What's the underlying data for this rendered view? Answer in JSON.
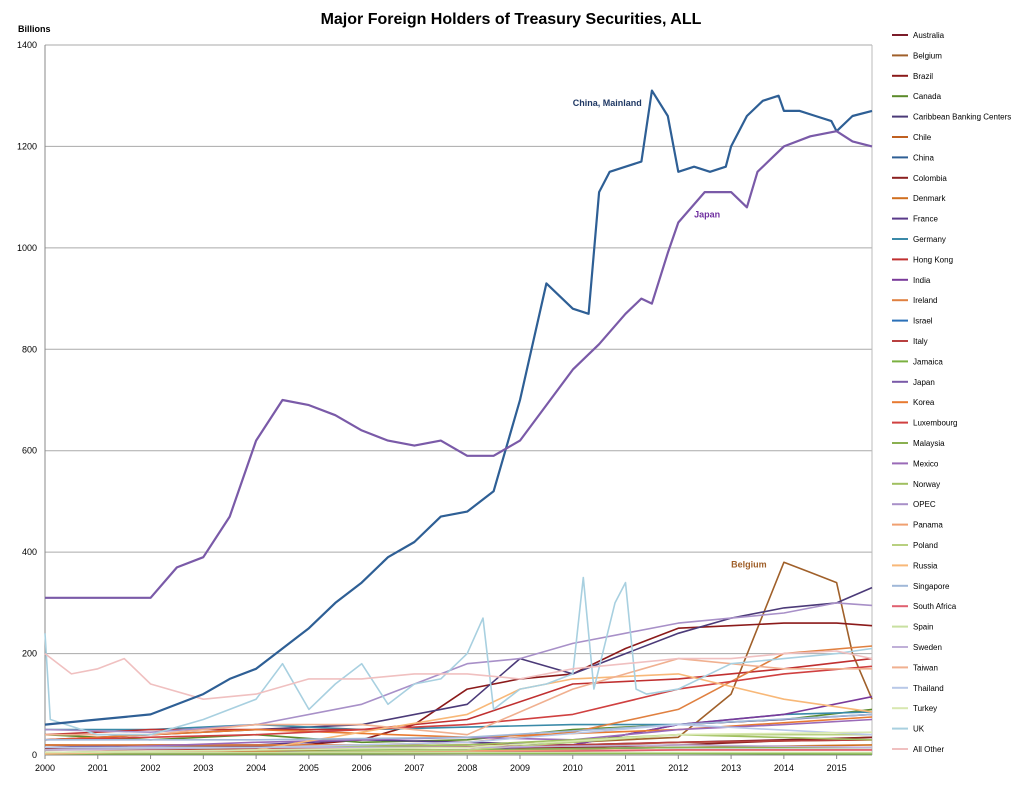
{
  "chart_data": {
    "type": "line",
    "title": "Major Foreign Holders of Treasury Securities, ALL",
    "ylabel": "Billions",
    "xlabel": "",
    "ylim": [
      0,
      1400
    ],
    "xlim": [
      2000,
      2015.67
    ],
    "yticks": [
      0,
      200,
      400,
      600,
      800,
      1000,
      1200,
      1400
    ],
    "xticks": [
      "2000",
      "2001",
      "2002",
      "2003",
      "2004",
      "2005",
      "2006",
      "2007",
      "2008",
      "2009",
      "2010",
      "2011",
      "2012",
      "2013",
      "2014",
      "2015"
    ],
    "grid": "horizontal",
    "legend_position": "right",
    "annotations": [
      {
        "text": "China, Mainland",
        "x": 2010.0,
        "y": 1280,
        "color": "#1f3864"
      },
      {
        "text": "Japan",
        "x": 2012.3,
        "y": 1060,
        "color": "#7030a0"
      },
      {
        "text": "Belgium",
        "x": 2013.0,
        "y": 370,
        "color": "#a0602a"
      }
    ],
    "series": [
      {
        "name": "Australia",
        "color": "#7b1c2a",
        "x": [
          2000,
          2002,
          2004,
          2006,
          2008,
          2010,
          2012,
          2014,
          2015.67
        ],
        "values": [
          20,
          18,
          18,
          15,
          16,
          20,
          25,
          30,
          35
        ]
      },
      {
        "name": "Belgium",
        "color": "#a0602a",
        "x": [
          2000,
          2002,
          2004,
          2006,
          2008,
          2010,
          2011,
          2012,
          2013,
          2013.5,
          2014,
          2014.5,
          2015,
          2015.3,
          2015.67
        ],
        "values": [
          20,
          18,
          20,
          18,
          20,
          25,
          30,
          35,
          120,
          250,
          380,
          360,
          340,
          200,
          110
        ]
      },
      {
        "name": "Brazil",
        "color": "#8b1a1a",
        "x": [
          2000,
          2002,
          2004,
          2006,
          2007,
          2008,
          2009,
          2010,
          2011,
          2012,
          2013,
          2014,
          2015,
          2015.67
        ],
        "values": [
          12,
          12,
          12,
          30,
          60,
          130,
          150,
          160,
          210,
          250,
          255,
          260,
          260,
          255
        ]
      },
      {
        "name": "Canada",
        "color": "#5b8a2a",
        "x": [
          2000,
          2002,
          2004,
          2006,
          2008,
          2010,
          2012,
          2014,
          2015.67
        ],
        "values": [
          40,
          30,
          40,
          25,
          30,
          50,
          60,
          70,
          90
        ]
      },
      {
        "name": "Caribbean Banking Centers",
        "color": "#4b3a78",
        "x": [
          2000,
          2002,
          2004,
          2006,
          2008,
          2009,
          2010,
          2011,
          2012,
          2013,
          2014,
          2015,
          2015.67
        ],
        "values": [
          30,
          40,
          50,
          60,
          100,
          190,
          160,
          200,
          240,
          270,
          290,
          300,
          330
        ]
      },
      {
        "name": "Chile",
        "color": "#c06020",
        "x": [
          2000,
          2004,
          2008,
          2012,
          2015.67
        ],
        "values": [
          5,
          5,
          10,
          25,
          30
        ]
      },
      {
        "name": "China",
        "color": "#2e5f95",
        "x": [
          2000,
          2001,
          2002,
          2003,
          2003.5,
          2004,
          2004.5,
          2005,
          2005.5,
          2006,
          2006.5,
          2007,
          2007.5,
          2008,
          2008.5,
          2009,
          2009.5,
          2010,
          2010.3,
          2010.5,
          2010.7,
          2011,
          2011.3,
          2011.5,
          2011.8,
          2012,
          2012.3,
          2012.6,
          2012.9,
          2013,
          2013.3,
          2013.6,
          2013.9,
          2014,
          2014.3,
          2014.6,
          2014.9,
          2015,
          2015.3,
          2015.67
        ],
        "values": [
          60,
          70,
          80,
          120,
          150,
          170,
          210,
          250,
          300,
          340,
          390,
          420,
          470,
          480,
          520,
          700,
          930,
          880,
          870,
          1110,
          1150,
          1160,
          1170,
          1310,
          1260,
          1150,
          1160,
          1150,
          1160,
          1200,
          1260,
          1290,
          1300,
          1270,
          1270,
          1260,
          1250,
          1230,
          1260,
          1270
        ]
      },
      {
        "name": "Colombia",
        "color": "#8b2020",
        "x": [
          2000,
          2004,
          2008,
          2012,
          2015.67
        ],
        "values": [
          5,
          5,
          10,
          20,
          35
        ]
      },
      {
        "name": "Denmark",
        "color": "#d07020",
        "x": [
          2000,
          2004,
          2008,
          2012,
          2015.67
        ],
        "values": [
          5,
          8,
          10,
          15,
          20
        ]
      },
      {
        "name": "France",
        "color": "#5a3a8a",
        "x": [
          2000,
          2002,
          2004,
          2006,
          2008,
          2010,
          2012,
          2014,
          2015.67
        ],
        "values": [
          15,
          20,
          20,
          30,
          25,
          20,
          60,
          70,
          80
        ]
      },
      {
        "name": "Germany",
        "color": "#3a8aa8",
        "x": [
          2000,
          2002,
          2004,
          2006,
          2008,
          2010,
          2012,
          2014,
          2015.67
        ],
        "values": [
          50,
          50,
          60,
          50,
          55,
          60,
          60,
          80,
          85
        ]
      },
      {
        "name": "Hong Kong",
        "color": "#c03030",
        "x": [
          2000,
          2002,
          2004,
          2006,
          2008,
          2010,
          2012,
          2014,
          2015.67
        ],
        "values": [
          40,
          50,
          50,
          50,
          70,
          140,
          150,
          170,
          190
        ]
      },
      {
        "name": "India",
        "color": "#7a3a9a",
        "x": [
          2000,
          2004,
          2008,
          2010,
          2012,
          2014,
          2015.67
        ],
        "values": [
          2,
          5,
          10,
          20,
          60,
          80,
          115
        ]
      },
      {
        "name": "Ireland",
        "color": "#e08040",
        "x": [
          2000,
          2002,
          2004,
          2006,
          2008,
          2010,
          2012,
          2014,
          2015.67
        ],
        "values": [
          20,
          20,
          20,
          20,
          25,
          45,
          90,
          200,
          215
        ]
      },
      {
        "name": "Israel",
        "color": "#2a70b8",
        "x": [
          2000,
          2004,
          2008,
          2012,
          2015.67
        ],
        "values": [
          5,
          5,
          10,
          15,
          15
        ]
      },
      {
        "name": "Italy",
        "color": "#b84040",
        "x": [
          2000,
          2004,
          2008,
          2012,
          2015.67
        ],
        "values": [
          10,
          12,
          15,
          25,
          30
        ]
      },
      {
        "name": "Jamaica",
        "color": "#7ab040",
        "x": [
          2000,
          2004,
          2008,
          2012,
          2015.67
        ],
        "values": [
          2,
          2,
          3,
          3,
          2
        ]
      },
      {
        "name": "Japan",
        "color": "#7a5aa8",
        "x": [
          2000,
          2001,
          2002,
          2002.5,
          2003,
          2003.5,
          2004,
          2004.5,
          2005,
          2005.5,
          2006,
          2006.5,
          2007,
          2007.5,
          2008,
          2008.5,
          2009,
          2009.5,
          2010,
          2010.5,
          2011,
          2011.3,
          2011.5,
          2011.8,
          2012,
          2012.5,
          2013,
          2013.3,
          2013.5,
          2013.8,
          2014,
          2014.5,
          2015,
          2015.3,
          2015.67
        ],
        "values": [
          310,
          310,
          310,
          370,
          390,
          470,
          620,
          700,
          690,
          670,
          640,
          620,
          610,
          620,
          590,
          590,
          620,
          690,
          760,
          810,
          870,
          900,
          890,
          990,
          1050,
          1110,
          1110,
          1080,
          1150,
          1180,
          1200,
          1220,
          1230,
          1210,
          1200
        ]
      },
      {
        "name": "Korea",
        "color": "#e87a30",
        "x": [
          2000,
          2004,
          2008,
          2012,
          2015.67
        ],
        "values": [
          30,
          50,
          35,
          50,
          75
        ]
      },
      {
        "name": "Luxembourg",
        "color": "#d04040",
        "x": [
          2000,
          2004,
          2008,
          2010,
          2012,
          2014,
          2015.67
        ],
        "values": [
          30,
          40,
          60,
          80,
          130,
          160,
          175
        ]
      },
      {
        "name": "Malaysia",
        "color": "#8ab050",
        "x": [
          2000,
          2004,
          2008,
          2012,
          2015.67
        ],
        "values": [
          5,
          10,
          10,
          15,
          15
        ]
      },
      {
        "name": "Mexico",
        "color": "#9a6ab8",
        "x": [
          2000,
          2004,
          2008,
          2010,
          2012,
          2014,
          2015.67
        ],
        "values": [
          10,
          25,
          35,
          30,
          50,
          60,
          70
        ]
      },
      {
        "name": "Norway",
        "color": "#a0c060",
        "x": [
          2000,
          2004,
          2008,
          2012,
          2015.67
        ],
        "values": [
          10,
          15,
          20,
          40,
          30
        ]
      },
      {
        "name": "OPEC",
        "color": "#a890c8",
        "x": [
          2000,
          2002,
          2004,
          2006,
          2008,
          2009,
          2010,
          2012,
          2013,
          2014,
          2015,
          2015.67
        ],
        "values": [
          50,
          45,
          60,
          100,
          180,
          190,
          220,
          260,
          270,
          280,
          300,
          295
        ]
      },
      {
        "name": "Panama",
        "color": "#f0a070",
        "x": [
          2000,
          2004,
          2008,
          2012,
          2015.67
        ],
        "values": [
          5,
          5,
          8,
          10,
          10
        ]
      },
      {
        "name": "Poland",
        "color": "#b8d080",
        "x": [
          2000,
          2004,
          2008,
          2012,
          2015.67
        ],
        "values": [
          5,
          5,
          10,
          40,
          40
        ]
      },
      {
        "name": "Russia",
        "color": "#f8b878",
        "x": [
          2000,
          2004,
          2008,
          2009,
          2010,
          2012,
          2014,
          2015.67
        ],
        "values": [
          2,
          10,
          80,
          130,
          150,
          160,
          110,
          85
        ]
      },
      {
        "name": "Singapore",
        "color": "#a0b8d8",
        "x": [
          2000,
          2004,
          2008,
          2012,
          2015.67
        ],
        "values": [
          30,
          30,
          35,
          60,
          80
        ]
      },
      {
        "name": "South Africa",
        "color": "#e06070",
        "x": [
          2000,
          2004,
          2008,
          2012,
          2015.67
        ],
        "values": [
          5,
          5,
          5,
          10,
          10
        ]
      },
      {
        "name": "Spain",
        "color": "#c8e0a0",
        "x": [
          2000,
          2004,
          2008,
          2012,
          2015.67
        ],
        "values": [
          5,
          5,
          5,
          5,
          5
        ]
      },
      {
        "name": "Sweden",
        "color": "#c0b0d8",
        "x": [
          2000,
          2004,
          2008,
          2012,
          2015.67
        ],
        "values": [
          10,
          15,
          15,
          20,
          15
        ]
      },
      {
        "name": "Taiwan",
        "color": "#f0b090",
        "x": [
          2000,
          2002,
          2004,
          2006,
          2008,
          2010,
          2012,
          2014,
          2015.67
        ],
        "values": [
          40,
          40,
          60,
          60,
          40,
          130,
          190,
          170,
          170
        ]
      },
      {
        "name": "Thailand",
        "color": "#b8c8e8",
        "x": [
          2000,
          2004,
          2008,
          2012,
          2015.67
        ],
        "values": [
          15,
          15,
          25,
          60,
          40
        ]
      },
      {
        "name": "Turkey",
        "color": "#d8e8b0",
        "x": [
          2000,
          2004,
          2008,
          2012,
          2015.67
        ],
        "values": [
          5,
          10,
          15,
          40,
          45
        ]
      },
      {
        "name": "UK",
        "color": "#a8d0e0",
        "x": [
          2000,
          2000.1,
          2001,
          2002,
          2003,
          2004,
          2004.5,
          2005,
          2005.5,
          2006,
          2006.5,
          2007,
          2007.5,
          2008,
          2008.3,
          2008.5,
          2009,
          2009.5,
          2010,
          2010.2,
          2010.4,
          2010.8,
          2011,
          2011.2,
          2011.4,
          2012,
          2013,
          2014,
          2015,
          2015.67
        ],
        "values": [
          240,
          70,
          40,
          40,
          70,
          110,
          180,
          90,
          140,
          180,
          100,
          140,
          150,
          200,
          270,
          90,
          130,
          140,
          160,
          350,
          130,
          300,
          340,
          130,
          120,
          130,
          180,
          190,
          200,
          210
        ]
      },
      {
        "name": "All Other",
        "color": "#f0c0c0",
        "x": [
          2000,
          2000.5,
          2001,
          2001.5,
          2002,
          2003,
          2004,
          2005,
          2006,
          2007,
          2008,
          2009,
          2010,
          2011,
          2012,
          2013,
          2014,
          2015,
          2015.67
        ],
        "values": [
          200,
          160,
          170,
          190,
          140,
          110,
          120,
          150,
          150,
          160,
          160,
          150,
          170,
          180,
          190,
          190,
          200,
          205,
          190
        ]
      }
    ]
  }
}
